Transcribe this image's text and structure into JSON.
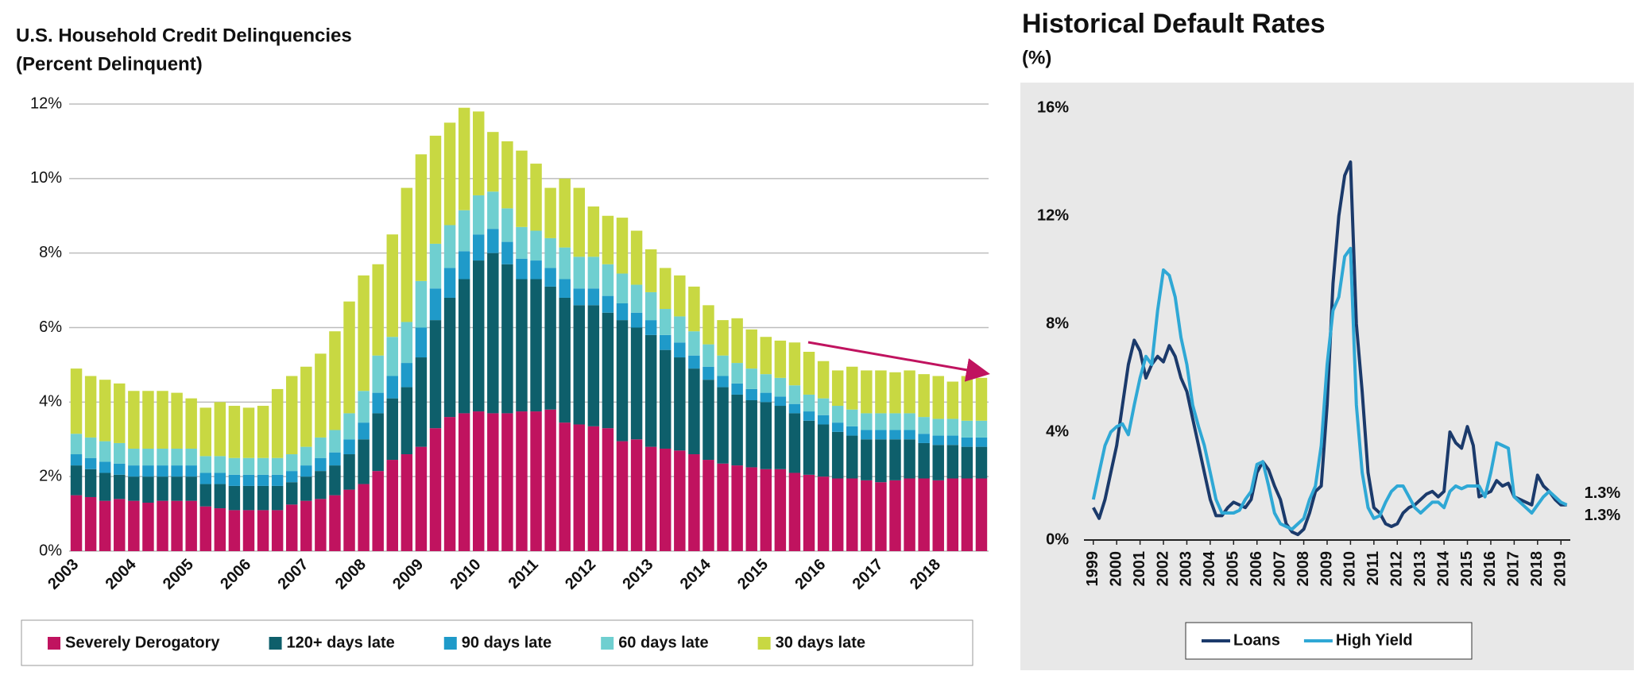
{
  "chart_data": [
    {
      "type": "bar",
      "stacked": true,
      "title": "U.S. Household Credit Delinquencies",
      "subtitle": "(Percent Delinquent)",
      "categories": [
        "2003",
        null,
        null,
        null,
        "2004",
        null,
        null,
        null,
        "2005",
        null,
        null,
        null,
        "2006",
        null,
        null,
        null,
        "2007",
        null,
        null,
        null,
        "2008",
        null,
        null,
        null,
        "2009",
        null,
        null,
        null,
        "2010",
        null,
        null,
        null,
        "2011",
        null,
        null,
        null,
        "2012",
        null,
        null,
        null,
        "2013",
        null,
        null,
        null,
        "2014",
        null,
        null,
        null,
        "2015",
        null,
        null,
        null,
        "2016",
        null,
        null,
        null,
        "2017",
        null,
        null,
        null,
        "2018",
        null,
        null,
        null
      ],
      "series": [
        {
          "name": "Severely Derogatory",
          "color": "#c0135f",
          "values": [
            1.5,
            1.45,
            1.35,
            1.4,
            1.35,
            1.3,
            1.35,
            1.35,
            1.35,
            1.2,
            1.15,
            1.1,
            1.1,
            1.1,
            1.1,
            1.25,
            1.35,
            1.4,
            1.5,
            1.65,
            1.8,
            2.15,
            2.45,
            2.6,
            2.8,
            3.3,
            3.6,
            3.7,
            3.75,
            3.7,
            3.7,
            3.75,
            3.75,
            3.8,
            3.45,
            3.4,
            3.35,
            3.3,
            2.95,
            3.0,
            2.8,
            2.75,
            2.7,
            2.6,
            2.45,
            2.35,
            2.3,
            2.25,
            2.2,
            2.2,
            2.1,
            2.05,
            2.0,
            1.95,
            1.95,
            1.9,
            1.85,
            1.9,
            1.95,
            1.95,
            1.9,
            1.95,
            1.95,
            1.95
          ]
        },
        {
          "name": "120+ days late",
          "color": "#0e5f6b",
          "values": [
            0.8,
            0.75,
            0.75,
            0.65,
            0.65,
            0.7,
            0.65,
            0.65,
            0.65,
            0.6,
            0.65,
            0.65,
            0.65,
            0.65,
            0.65,
            0.6,
            0.65,
            0.75,
            0.8,
            0.95,
            1.2,
            1.55,
            1.65,
            1.8,
            2.4,
            2.9,
            3.2,
            3.6,
            4.05,
            4.3,
            4.0,
            3.55,
            3.55,
            3.3,
            3.35,
            3.2,
            3.25,
            3.1,
            3.25,
            3.0,
            3.0,
            2.65,
            2.5,
            2.3,
            2.15,
            2.05,
            1.9,
            1.8,
            1.8,
            1.7,
            1.6,
            1.45,
            1.4,
            1.25,
            1.15,
            1.1,
            1.15,
            1.1,
            1.05,
            0.95,
            0.95,
            0.9,
            0.85,
            0.85
          ]
        },
        {
          "name": "90 days late",
          "color": "#1f9ac9",
          "values": [
            0.3,
            0.3,
            0.3,
            0.3,
            0.3,
            0.3,
            0.3,
            0.3,
            0.3,
            0.3,
            0.3,
            0.3,
            0.3,
            0.3,
            0.3,
            0.3,
            0.3,
            0.35,
            0.35,
            0.4,
            0.45,
            0.55,
            0.6,
            0.65,
            0.8,
            0.85,
            0.8,
            0.75,
            0.7,
            0.65,
            0.6,
            0.55,
            0.5,
            0.5,
            0.5,
            0.45,
            0.45,
            0.45,
            0.45,
            0.4,
            0.4,
            0.4,
            0.4,
            0.35,
            0.35,
            0.3,
            0.3,
            0.3,
            0.25,
            0.25,
            0.25,
            0.25,
            0.25,
            0.25,
            0.25,
            0.25,
            0.25,
            0.25,
            0.25,
            0.25,
            0.25,
            0.25,
            0.25,
            0.25
          ]
        },
        {
          "name": "60 days late",
          "color": "#6fcfd0",
          "values": [
            0.55,
            0.55,
            0.55,
            0.55,
            0.45,
            0.45,
            0.45,
            0.45,
            0.45,
            0.45,
            0.45,
            0.45,
            0.45,
            0.45,
            0.45,
            0.45,
            0.5,
            0.55,
            0.6,
            0.7,
            0.85,
            1.0,
            1.05,
            1.1,
            1.25,
            1.2,
            1.15,
            1.1,
            1.05,
            1.0,
            0.9,
            0.85,
            0.8,
            0.8,
            0.85,
            0.85,
            0.85,
            0.85,
            0.8,
            0.75,
            0.75,
            0.7,
            0.7,
            0.65,
            0.6,
            0.55,
            0.55,
            0.55,
            0.5,
            0.5,
            0.5,
            0.45,
            0.45,
            0.45,
            0.45,
            0.45,
            0.45,
            0.45,
            0.45,
            0.45,
            0.45,
            0.45,
            0.45,
            0.45
          ]
        },
        {
          "name": "30 days late",
          "color": "#c8d842",
          "values": [
            1.75,
            1.65,
            1.65,
            1.6,
            1.55,
            1.55,
            1.55,
            1.5,
            1.35,
            1.3,
            1.45,
            1.4,
            1.35,
            1.4,
            1.85,
            2.1,
            2.15,
            2.25,
            2.65,
            3.0,
            3.1,
            2.45,
            2.75,
            3.6,
            3.4,
            2.9,
            2.75,
            2.75,
            2.25,
            1.6,
            1.8,
            2.05,
            1.8,
            1.35,
            1.85,
            1.85,
            1.35,
            1.3,
            1.5,
            1.45,
            1.15,
            1.1,
            1.1,
            1.2,
            1.05,
            0.95,
            1.2,
            1.05,
            1.0,
            1.0,
            1.15,
            1.15,
            1.0,
            0.95,
            1.15,
            1.15,
            1.15,
            1.1,
            1.15,
            1.15,
            1.15,
            1.0,
            1.2,
            1.15
          ]
        }
      ],
      "ylim": [
        0,
        12
      ],
      "yticks": [
        {
          "value": 0,
          "label": "0%"
        },
        {
          "value": 2,
          "label": "2%"
        },
        {
          "value": 4,
          "label": "4%"
        },
        {
          "value": 6,
          "label": "6%"
        },
        {
          "value": 8,
          "label": "8%"
        },
        {
          "value": 10,
          "label": "10%"
        },
        {
          "value": 12,
          "label": "12%"
        }
      ],
      "grid": true,
      "legend": "bottom"
    },
    {
      "type": "line",
      "title": "Historical Default Rates",
      "subtitle": "(%)",
      "x": [
        1999,
        1999.25,
        1999.5,
        1999.75,
        2000,
        2000.25,
        2000.5,
        2000.75,
        2001,
        2001.25,
        2001.5,
        2001.75,
        2002,
        2002.25,
        2002.5,
        2002.75,
        2003,
        2003.25,
        2003.5,
        2003.75,
        2004,
        2004.25,
        2004.5,
        2004.75,
        2005,
        2005.25,
        2005.5,
        2005.75,
        2006,
        2006.25,
        2006.5,
        2006.75,
        2007,
        2007.25,
        2007.5,
        2007.75,
        2008,
        2008.25,
        2008.5,
        2008.75,
        2009,
        2009.25,
        2009.5,
        2009.75,
        2010,
        2010.25,
        2010.5,
        2010.75,
        2011,
        2011.25,
        2011.5,
        2011.75,
        2012,
        2012.25,
        2012.5,
        2012.75,
        2013,
        2013.25,
        2013.5,
        2013.75,
        2014,
        2014.25,
        2014.5,
        2014.75,
        2015,
        2015.25,
        2015.5,
        2015.75,
        2016,
        2016.25,
        2016.5,
        2016.75,
        2017,
        2017.25,
        2017.5,
        2017.75,
        2018,
        2018.25,
        2018.5,
        2018.75,
        2019,
        2019.25
      ],
      "series": [
        {
          "name": "Loans",
          "color": "#1b3a6b",
          "end_label": "1.3%",
          "values": [
            1.2,
            0.8,
            1.5,
            2.5,
            3.5,
            5.0,
            6.5,
            7.4,
            7.0,
            6.0,
            6.5,
            6.8,
            6.6,
            7.2,
            6.8,
            6.0,
            5.5,
            4.5,
            3.5,
            2.5,
            1.5,
            0.9,
            0.9,
            1.2,
            1.4,
            1.3,
            1.2,
            1.5,
            2.5,
            2.9,
            2.6,
            2.0,
            1.5,
            0.6,
            0.3,
            0.2,
            0.4,
            1.0,
            1.8,
            2.0,
            5.0,
            9.5,
            12.0,
            13.5,
            14.0,
            8.0,
            5.5,
            2.5,
            1.2,
            1.0,
            0.6,
            0.5,
            0.6,
            1.0,
            1.2,
            1.3,
            1.5,
            1.7,
            1.8,
            1.6,
            1.8,
            4.0,
            3.6,
            3.4,
            4.2,
            3.5,
            1.6,
            1.7,
            1.8,
            2.2,
            2.0,
            2.1,
            1.6,
            1.5,
            1.4,
            1.3,
            2.4,
            2.0,
            1.8,
            1.5,
            1.3,
            1.3
          ]
        },
        {
          "name": "High Yield",
          "color": "#2fa8d5",
          "end_label": "1.3%",
          "values": [
            1.5,
            2.5,
            3.5,
            4.0,
            4.2,
            4.3,
            3.9,
            5.0,
            6.0,
            6.8,
            6.5,
            8.5,
            10.0,
            9.8,
            9.0,
            7.5,
            6.5,
            5.0,
            4.2,
            3.5,
            2.5,
            1.5,
            1.0,
            1.0,
            1.0,
            1.1,
            1.5,
            1.8,
            2.8,
            2.9,
            2.0,
            1.0,
            0.6,
            0.5,
            0.4,
            0.6,
            0.8,
            1.5,
            2.0,
            3.5,
            6.5,
            8.5,
            9.0,
            10.5,
            10.8,
            5.0,
            2.5,
            1.2,
            0.8,
            0.9,
            1.4,
            1.8,
            2.0,
            2.0,
            1.6,
            1.2,
            1.0,
            1.2,
            1.4,
            1.4,
            1.2,
            1.8,
            2.0,
            1.9,
            2.0,
            2.0,
            2.0,
            1.6,
            2.5,
            3.6,
            3.5,
            3.4,
            1.6,
            1.4,
            1.2,
            1.0,
            1.3,
            1.6,
            1.8,
            1.6,
            1.4,
            1.3
          ]
        }
      ],
      "xlim": [
        1998.6,
        2019.4
      ],
      "xticks": [
        1999,
        2000,
        2001,
        2002,
        2003,
        2004,
        2005,
        2006,
        2007,
        2008,
        2009,
        2010,
        2011,
        2012,
        2013,
        2014,
        2015,
        2016,
        2017,
        2018,
        2019
      ],
      "ylim": [
        0,
        16
      ],
      "yticks": [
        {
          "value": 0,
          "label": "0%"
        },
        {
          "value": 4,
          "label": "4%"
        },
        {
          "value": 8,
          "label": "8%"
        },
        {
          "value": 12,
          "label": "12%"
        },
        {
          "value": 16,
          "label": "16%"
        }
      ],
      "grid": false,
      "legend": "bottom"
    }
  ]
}
